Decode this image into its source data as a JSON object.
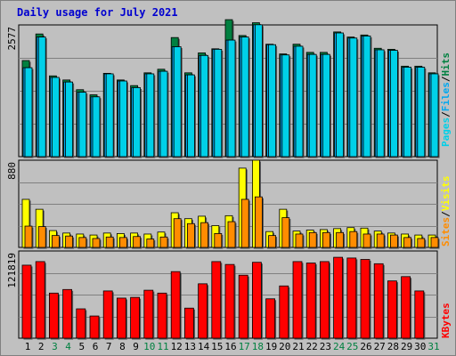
{
  "title": "Daily usage for July 2021",
  "colors": {
    "pages": "#00d0e8",
    "files": "#00a8f0",
    "hits": "#008040",
    "visits": "#ffff00",
    "sites": "#ff8c00",
    "kbytes": "#ff0000",
    "weekend_day": "#008040",
    "weekday": "#000000",
    "background": "#c0c0c0",
    "title": "#0000d0"
  },
  "chart_data": [
    {
      "type": "bar",
      "title": "Daily usage for July 2021",
      "categories": [
        "1",
        "2",
        "3",
        "4",
        "5",
        "6",
        "7",
        "8",
        "9",
        "10",
        "11",
        "12",
        "13",
        "14",
        "15",
        "16",
        "17",
        "18",
        "19",
        "20",
        "21",
        "22",
        "23",
        "24",
        "25",
        "26",
        "27",
        "28",
        "29",
        "30",
        "31"
      ],
      "weekend_days": [
        "3",
        "4",
        "10",
        "11",
        "17",
        "18",
        "24",
        "25",
        "31"
      ],
      "ylim": [
        0,
        2577
      ],
      "y_tick_label": "2577",
      "right_labels": [
        "Pages",
        "Files",
        "Hits"
      ],
      "series": [
        {
          "name": "Hits",
          "values": [
            1880,
            2400,
            1580,
            1500,
            1310,
            1210,
            1630,
            1500,
            1390,
            1640,
            1710,
            2330,
            1640,
            2030,
            2110,
            2680,
            2370,
            2620,
            2200,
            2010,
            2200,
            2040,
            2040,
            2440,
            2340,
            2380,
            2120,
            2100,
            1770,
            1770,
            1640
          ]
        },
        {
          "name": "Files",
          "values": [
            1740,
            2340,
            1550,
            1460,
            1260,
            1170,
            1620,
            1480,
            1350,
            1620,
            1670,
            2150,
            1600,
            1980,
            2100,
            2280,
            2340,
            2580,
            2190,
            1990,
            2160,
            2000,
            2000,
            2420,
            2320,
            2360,
            2090,
            2080,
            1750,
            1750,
            1620
          ]
        },
        {
          "name": "Pages",
          "values": [
            1740,
            2340,
            1550,
            1460,
            1260,
            1170,
            1620,
            1480,
            1350,
            1620,
            1670,
            2150,
            1600,
            1980,
            2100,
            2280,
            2340,
            2580,
            2190,
            1990,
            2160,
            2000,
            2000,
            2420,
            2320,
            2360,
            2090,
            2080,
            1750,
            1750,
            1620
          ]
        }
      ]
    },
    {
      "type": "bar",
      "categories": [
        "1",
        "2",
        "3",
        "4",
        "5",
        "6",
        "7",
        "8",
        "9",
        "10",
        "11",
        "12",
        "13",
        "14",
        "15",
        "16",
        "17",
        "18",
        "19",
        "20",
        "21",
        "22",
        "23",
        "24",
        "25",
        "26",
        "27",
        "28",
        "29",
        "30",
        "31"
      ],
      "ylim": [
        0,
        880
      ],
      "y_tick_label": "880",
      "right_labels": [
        "Sites",
        "Visits"
      ],
      "series": [
        {
          "name": "Visits",
          "values": [
            485,
            385,
            170,
            145,
            135,
            125,
            145,
            140,
            145,
            135,
            155,
            350,
            290,
            315,
            220,
            320,
            800,
            880,
            160,
            385,
            165,
            175,
            180,
            190,
            200,
            195,
            165,
            145,
            135,
            125,
            125
          ]
        },
        {
          "name": "Sites",
          "values": [
            215,
            210,
            120,
            115,
            100,
            90,
            105,
            100,
            110,
            85,
            105,
            290,
            240,
            250,
            140,
            260,
            485,
            510,
            120,
            300,
            135,
            150,
            150,
            150,
            160,
            135,
            135,
            125,
            100,
            90,
            100
          ]
        }
      ]
    },
    {
      "type": "bar",
      "categories": [
        "1",
        "2",
        "3",
        "4",
        "5",
        "6",
        "7",
        "8",
        "9",
        "10",
        "11",
        "12",
        "13",
        "14",
        "15",
        "16",
        "17",
        "18",
        "19",
        "20",
        "21",
        "22",
        "23",
        "24",
        "25",
        "26",
        "27",
        "28",
        "29",
        "30",
        "31"
      ],
      "ylim": [
        0,
        121819
      ],
      "y_tick_label": "121819",
      "right_labels": [
        "KBytes"
      ],
      "series": [
        {
          "name": "KBytes",
          "values": [
            102000,
            107000,
            63000,
            68000,
            41000,
            31000,
            66000,
            56000,
            57000,
            67000,
            63000,
            93000,
            42000,
            76000,
            107000,
            103000,
            88000,
            106000,
            55000,
            73000,
            107000,
            105000,
            107000,
            113000,
            112000,
            110000,
            104000,
            80000,
            86000,
            66000,
            0
          ]
        }
      ]
    }
  ]
}
